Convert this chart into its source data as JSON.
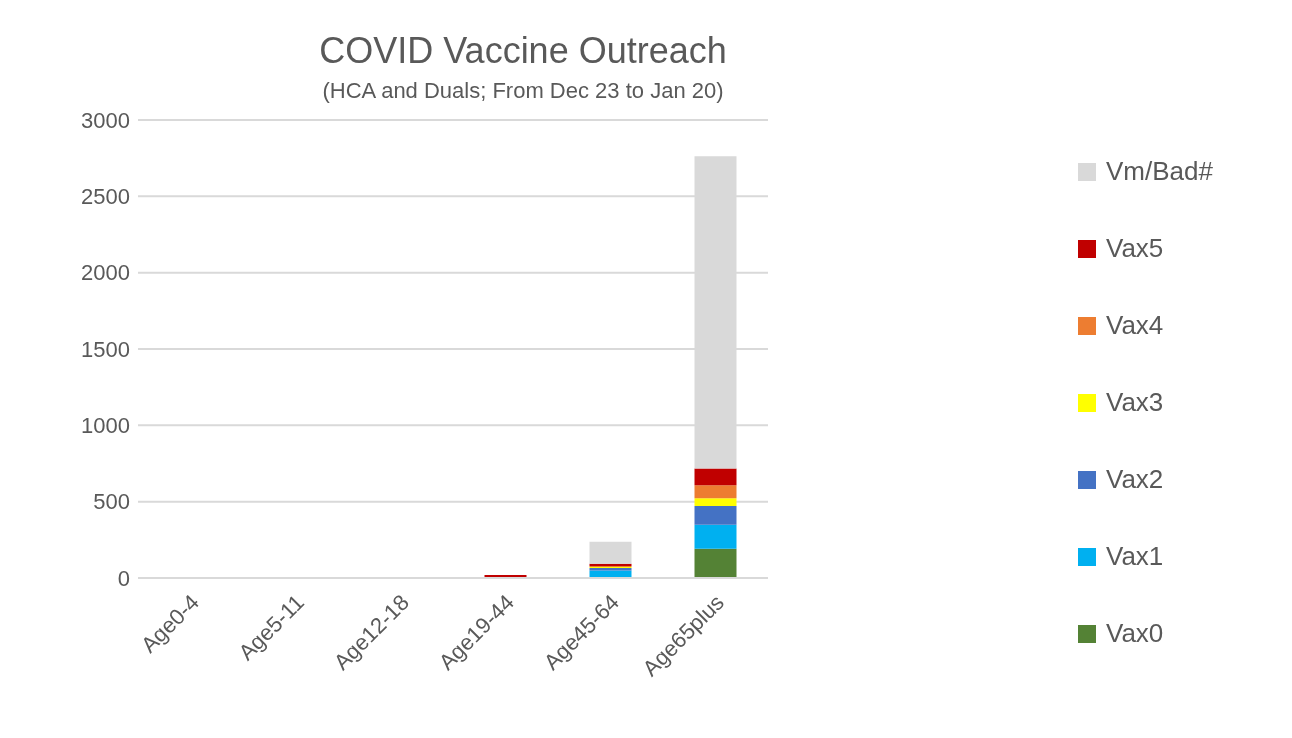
{
  "chart_data": {
    "type": "bar",
    "title": "COVID Vaccine Outreach",
    "subtitle": "(HCA and Duals; From Dec 23 to Jan 20)",
    "categories": [
      "Age0-4",
      "Age5-11",
      "Age12-18",
      "Age19-44",
      "Age45-64",
      "Age65plus"
    ],
    "stacked": true,
    "ylim": [
      0,
      3000
    ],
    "yticks": [
      0,
      500,
      1000,
      1500,
      2000,
      2500,
      3000
    ],
    "grid": "y",
    "legend": "right",
    "series": [
      {
        "name": "Vax0",
        "color": "#548235",
        "values": [
          0,
          0,
          0,
          0,
          null,
          191
        ]
      },
      {
        "name": "Vax1",
        "color": "#00b0f0",
        "values": [
          0,
          0,
          0,
          0,
          49,
          157
        ]
      },
      {
        "name": "Vax2",
        "color": "#4472c4",
        "values": [
          0,
          0,
          0,
          0,
          16,
          123
        ]
      },
      {
        "name": "Vax3",
        "color": "#ffff00",
        "values": [
          0,
          0,
          0,
          0,
          7,
          51
        ]
      },
      {
        "name": "Vax4",
        "color": "#ed7d31",
        "values": [
          0,
          0,
          0,
          0,
          7,
          85
        ]
      },
      {
        "name": "Vax5",
        "color": "#c00000",
        "values": [
          0,
          0,
          0,
          20,
          15,
          111
        ]
      },
      {
        "name": "Vm/Bad#",
        "color": "#d9d9d9",
        "values": [
          0,
          0,
          0,
          null,
          144,
          2045
        ]
      }
    ]
  }
}
